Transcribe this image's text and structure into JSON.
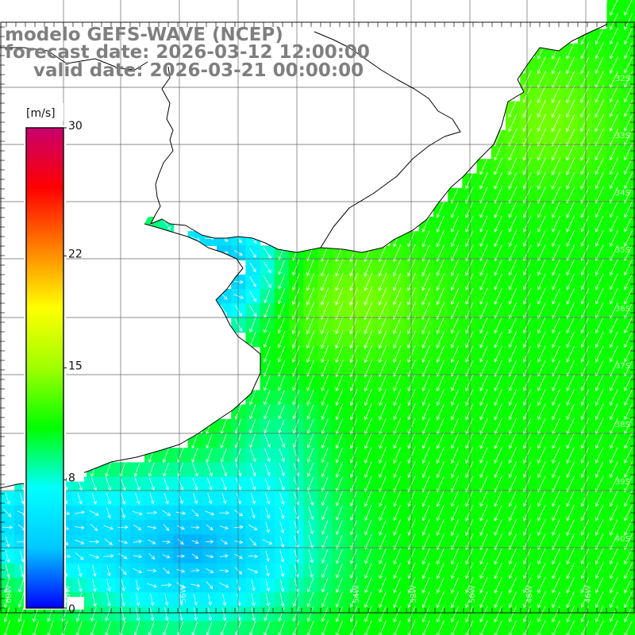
{
  "title": {
    "model": "modelo GEFS-WAVE (NCEP)",
    "forecast": "forecast date: 2026-03-12 12:00:00",
    "valid": "valid date: 2026-03-21 00:00:00"
  },
  "colorbar": {
    "unit": "[m/s]",
    "min": 0,
    "max": 30,
    "ticks": [
      {
        "value": 30,
        "label": "30"
      },
      {
        "value": 22,
        "label": "22"
      },
      {
        "value": 15,
        "label": "15"
      },
      {
        "value": 8,
        "label": "8"
      },
      {
        "value": 0,
        "label": "0"
      }
    ],
    "colors": [
      "#0000ff",
      "#00c8ff",
      "#00ffff",
      "#00ff00",
      "#a0ff00",
      "#ffff00",
      "#ff8000",
      "#ff0000",
      "#c8006e"
    ]
  },
  "map": {
    "field": "wind speed",
    "land_color": "#ffffff",
    "grid_color": "#666666",
    "coast_color": "#000000",
    "lat_labels": [
      "32S",
      "33S",
      "34S",
      "35S",
      "36S",
      "37S",
      "38S",
      "39S",
      "40S"
    ],
    "lon_labels": [
      "60W",
      "58W",
      "56W",
      "54W",
      "52W",
      "50W",
      "48W",
      "46W"
    ]
  }
}
